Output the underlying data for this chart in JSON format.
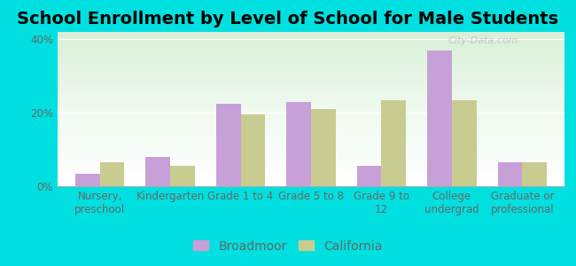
{
  "title": "School Enrollment by Level of School for Male Students",
  "categories": [
    "Nursery,\npreschool",
    "Kindergarten",
    "Grade 1 to 4",
    "Grade 5 to 8",
    "Grade 9 to\n12",
    "College\nundergrad",
    "Graduate or\nprofessional"
  ],
  "broadmoor": [
    3.5,
    8.0,
    22.5,
    23.0,
    5.5,
    37.0,
    6.5
  ],
  "california": [
    6.5,
    5.5,
    19.5,
    21.0,
    23.5,
    23.5,
    6.5
  ],
  "broadmoor_color": "#c8a0d8",
  "california_color": "#c8cc90",
  "background_outer": "#00e0e0",
  "ylim": [
    0,
    42
  ],
  "yticks": [
    0,
    20,
    40
  ],
  "ytick_labels": [
    "0%",
    "20%",
    "40%"
  ],
  "title_fontsize": 14,
  "tick_fontsize": 8.5,
  "legend_fontsize": 10,
  "bar_width": 0.35,
  "watermark": "City-Data.com"
}
